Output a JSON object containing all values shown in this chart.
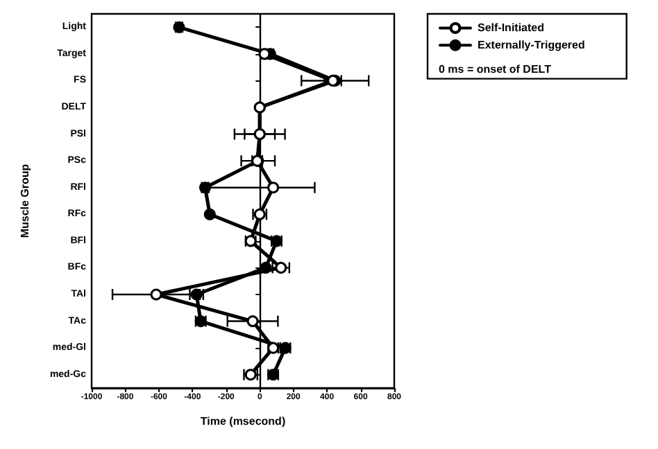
{
  "chart_data": {
    "type": "line",
    "orientation": "horizontal",
    "xlabel": "Time (msecond)",
    "ylabel": "Muscle Group",
    "categories": [
      "Light",
      "Target",
      "FS",
      "DELT",
      "PSl",
      "PSc",
      "RFl",
      "RFc",
      "BFl",
      "BFc",
      "TAl",
      "TAc",
      "med-Gl",
      "med-Gc"
    ],
    "series": [
      {
        "name": "Self-Initiated",
        "color": "#000000",
        "values": [
          null,
          28,
          435,
          0,
          0,
          -15,
          80,
          0,
          -54,
          126,
          -616,
          -42,
          80,
          -54
        ],
        "errors": [
          null,
          20,
          50,
          null,
          150,
          30,
          [
            -305,
            327
          ],
          40,
          30,
          50,
          260,
          150,
          30,
          40
        ]
      },
      {
        "name": "Externally-Triggered",
        "color": "#000000",
        "values": [
          -480,
          62,
          448,
          0,
          0,
          -10,
          -325,
          -297,
          100,
          36,
          -376,
          -351,
          152,
          80
        ],
        "errors": [
          20,
          20,
          200,
          null,
          90,
          100,
          20,
          null,
          30,
          null,
          40,
          30,
          30,
          30
        ]
      }
    ],
    "xlim": [
      -1000,
      800
    ],
    "xticks": [
      -1000,
      -800,
      -600,
      -400,
      -200,
      0,
      200,
      400,
      600,
      800
    ],
    "ref_lines": [
      {
        "axis": "x",
        "value": 0
      }
    ],
    "annotations": [
      "0 ms = onset of DELT"
    ],
    "legend": "top right",
    "grid": false,
    "marker": "circle",
    "line_style": "solid"
  }
}
